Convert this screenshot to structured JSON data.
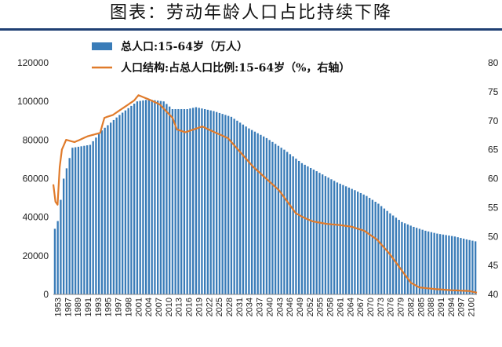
{
  "title": "图表：劳动年龄人口占比持续下降",
  "chart_data": {
    "type": "bar",
    "legend": {
      "bar_label": "总人口:15-64岁（万人）",
      "line_label": "人口结构:占总人口比例:15-64岁（%，右轴）",
      "placement": "top-left"
    },
    "y_left": {
      "min": 0,
      "max": 120000,
      "ticks": [
        "0",
        "20000",
        "40000",
        "60000",
        "80000",
        "100000",
        "120000"
      ]
    },
    "y_right": {
      "min": 40,
      "max": 80,
      "ticks": [
        "40",
        "45",
        "50",
        "55",
        "60",
        "65",
        "70",
        "75",
        "80"
      ]
    },
    "x_tick_labels": [
      "1953",
      "1987",
      "1989",
      "1991",
      "1993",
      "1995",
      "1997",
      "1998",
      "2001",
      "2004",
      "2007",
      "2010",
      "2013",
      "2016",
      "2019",
      "2022",
      "2025",
      "2028",
      "2031",
      "2034",
      "2037",
      "2040",
      "2043",
      "2046",
      "2049",
      "2052",
      "2055",
      "2058",
      "2061",
      "2064",
      "2067",
      "2070",
      "2073",
      "2076",
      "2079",
      "2082",
      "2085",
      "2088",
      "2091",
      "2094",
      "2097",
      "2100"
    ],
    "series": [
      {
        "name": "总人口:15-64岁（万人）",
        "axis": "left",
        "color": "#3a7cb8",
        "keypoints": [
          [
            0,
            34000
          ],
          [
            1,
            38000
          ],
          [
            3,
            60000
          ],
          [
            6,
            76000
          ],
          [
            12,
            77500
          ],
          [
            16,
            85000
          ],
          [
            22,
            93000
          ],
          [
            28,
            100000
          ],
          [
            32,
            101000
          ],
          [
            37,
            100000
          ],
          [
            40,
            96000
          ],
          [
            45,
            96000
          ],
          [
            48,
            97000
          ],
          [
            54,
            95000
          ],
          [
            60,
            92000
          ],
          [
            66,
            86000
          ],
          [
            72,
            81000
          ],
          [
            78,
            75000
          ],
          [
            84,
            68000
          ],
          [
            90,
            63000
          ],
          [
            96,
            58000
          ],
          [
            102,
            54000
          ],
          [
            106,
            51000
          ],
          [
            110,
            47000
          ],
          [
            114,
            42000
          ],
          [
            118,
            37500
          ],
          [
            122,
            35000
          ],
          [
            126,
            33000
          ],
          [
            130,
            31500
          ],
          [
            136,
            30000
          ],
          [
            140,
            28500
          ],
          [
            143,
            27500
          ]
        ],
        "count": 144
      },
      {
        "name": "人口结构:占总人口比例:15-64岁（%，右轴）",
        "axis": "right",
        "color": "#e07b2b",
        "keypoints": [
          [
            0,
            59
          ],
          [
            1,
            56
          ],
          [
            2,
            55.5
          ],
          [
            3,
            62
          ],
          [
            4,
            65
          ],
          [
            6,
            66.7
          ],
          [
            10,
            66.3
          ],
          [
            16,
            67.3
          ],
          [
            22,
            67.9
          ],
          [
            24,
            70.5
          ],
          [
            28,
            71
          ],
          [
            32,
            72
          ],
          [
            36,
            73
          ],
          [
            38,
            73.5
          ],
          [
            40,
            74.4
          ],
          [
            46,
            73.5
          ],
          [
            50,
            72.8
          ],
          [
            56,
            70.5
          ],
          [
            58,
            68.5
          ],
          [
            62,
            68
          ],
          [
            66,
            68.5
          ],
          [
            70,
            69
          ],
          [
            74,
            68.3
          ],
          [
            82,
            67
          ],
          [
            88,
            64.5
          ],
          [
            94,
            62
          ],
          [
            100,
            60
          ],
          [
            106,
            58
          ],
          [
            110,
            56
          ],
          [
            114,
            54
          ],
          [
            118,
            53.2
          ],
          [
            122,
            52.6
          ],
          [
            128,
            52.2
          ],
          [
            134,
            52.0
          ],
          [
            140,
            51.7
          ],
          [
            146,
            51.0
          ],
          [
            152,
            49.5
          ],
          [
            158,
            47
          ],
          [
            162,
            45
          ],
          [
            168,
            42
          ],
          [
            172,
            41.2
          ],
          [
            180,
            40.9
          ],
          [
            188,
            40.7
          ],
          [
            195,
            40.6
          ],
          [
            199,
            40.3
          ]
        ],
        "count": 200
      }
    ]
  }
}
